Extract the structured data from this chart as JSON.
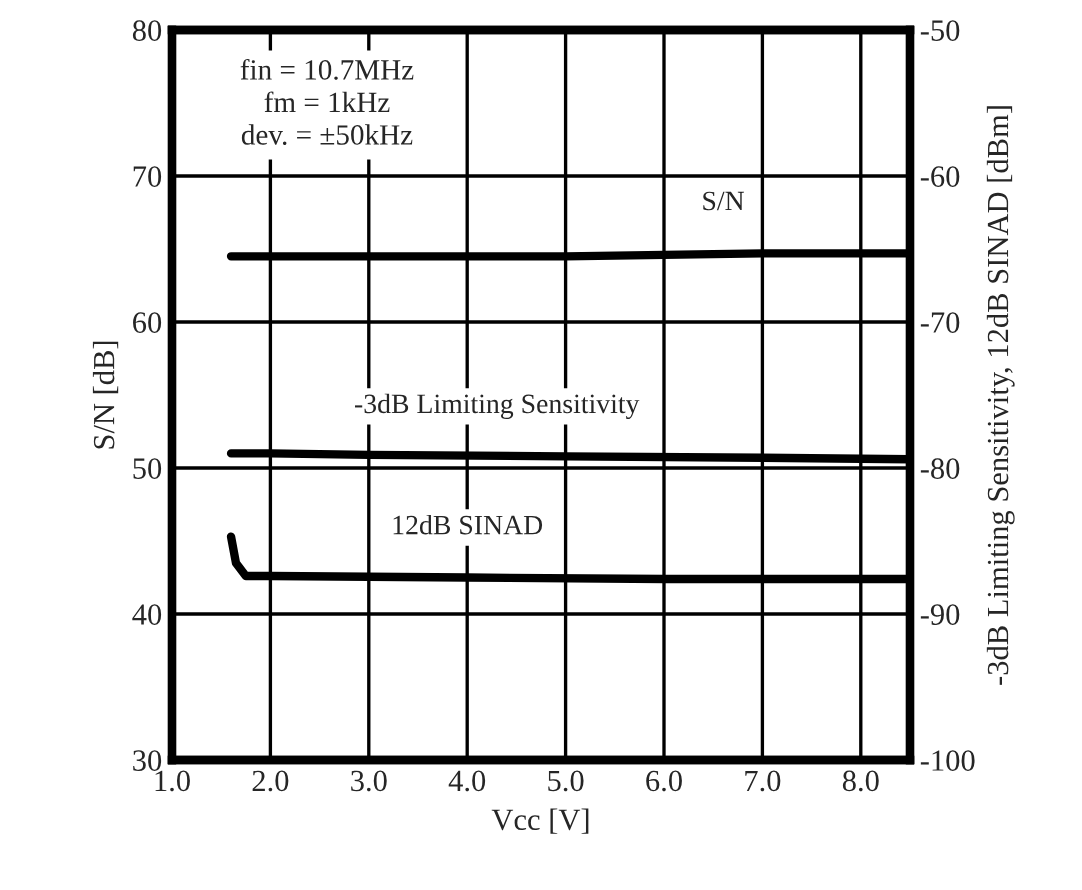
{
  "chart_data": {
    "type": "line",
    "xlabel": "Vcc [V]",
    "ylabel": "S/N [dB]",
    "y2label": "-3dB Limiting Sensitivity, 12dB SINAD [dBm]",
    "series": [
      {
        "name": "S/N",
        "color": "#000000",
        "x": [
          1.6,
          3.0,
          4.5,
          5.0,
          6.0,
          7.0,
          8.5
        ],
        "values": [
          64.5,
          64.5,
          64.5,
          64.5,
          64.6,
          64.7,
          64.7
        ]
      },
      {
        "name": "-3dB Limiting Sensitivity",
        "color": "#000000",
        "axis": "y2",
        "x": [
          1.6,
          2.0,
          3.0,
          5.0,
          7.0,
          8.5
        ],
        "values": [
          -79.0,
          -79.0,
          -79.1,
          -79.2,
          -79.3,
          -79.4
        ]
      },
      {
        "name": "12dB SINAD",
        "color": "#000000",
        "axis": "y2",
        "x": [
          1.6,
          1.65,
          1.75,
          2.0,
          4.0,
          6.0,
          8.5
        ],
        "values": [
          -84.7,
          -86.5,
          -87.4,
          -87.4,
          -87.5,
          -87.6,
          -87.6
        ]
      }
    ],
    "annotations": [
      "fin = 10.7MHz",
      "fm = 1kHz",
      "dev. = ±50kHz"
    ],
    "xlim": [
      1.0,
      8.5
    ],
    "xticks": [
      {
        "value": 1,
        "label": "1.0"
      },
      {
        "value": 2,
        "label": "2.0"
      },
      {
        "value": 3,
        "label": "3.0"
      },
      {
        "value": 4,
        "label": "4.0"
      },
      {
        "value": 5,
        "label": "5.0"
      },
      {
        "value": 6,
        "label": "6.0"
      },
      {
        "value": 7,
        "label": "7.0"
      },
      {
        "value": 8,
        "label": "8.0"
      }
    ],
    "ylim": [
      30,
      80
    ],
    "yticks": [
      30,
      40,
      50,
      60,
      70,
      80
    ],
    "y2lim": [
      -100,
      -50
    ],
    "y2ticks": [
      -100,
      -90,
      -80,
      -70,
      -60,
      -50
    ],
    "grid": true,
    "line_style": "solid",
    "marker": "none"
  }
}
